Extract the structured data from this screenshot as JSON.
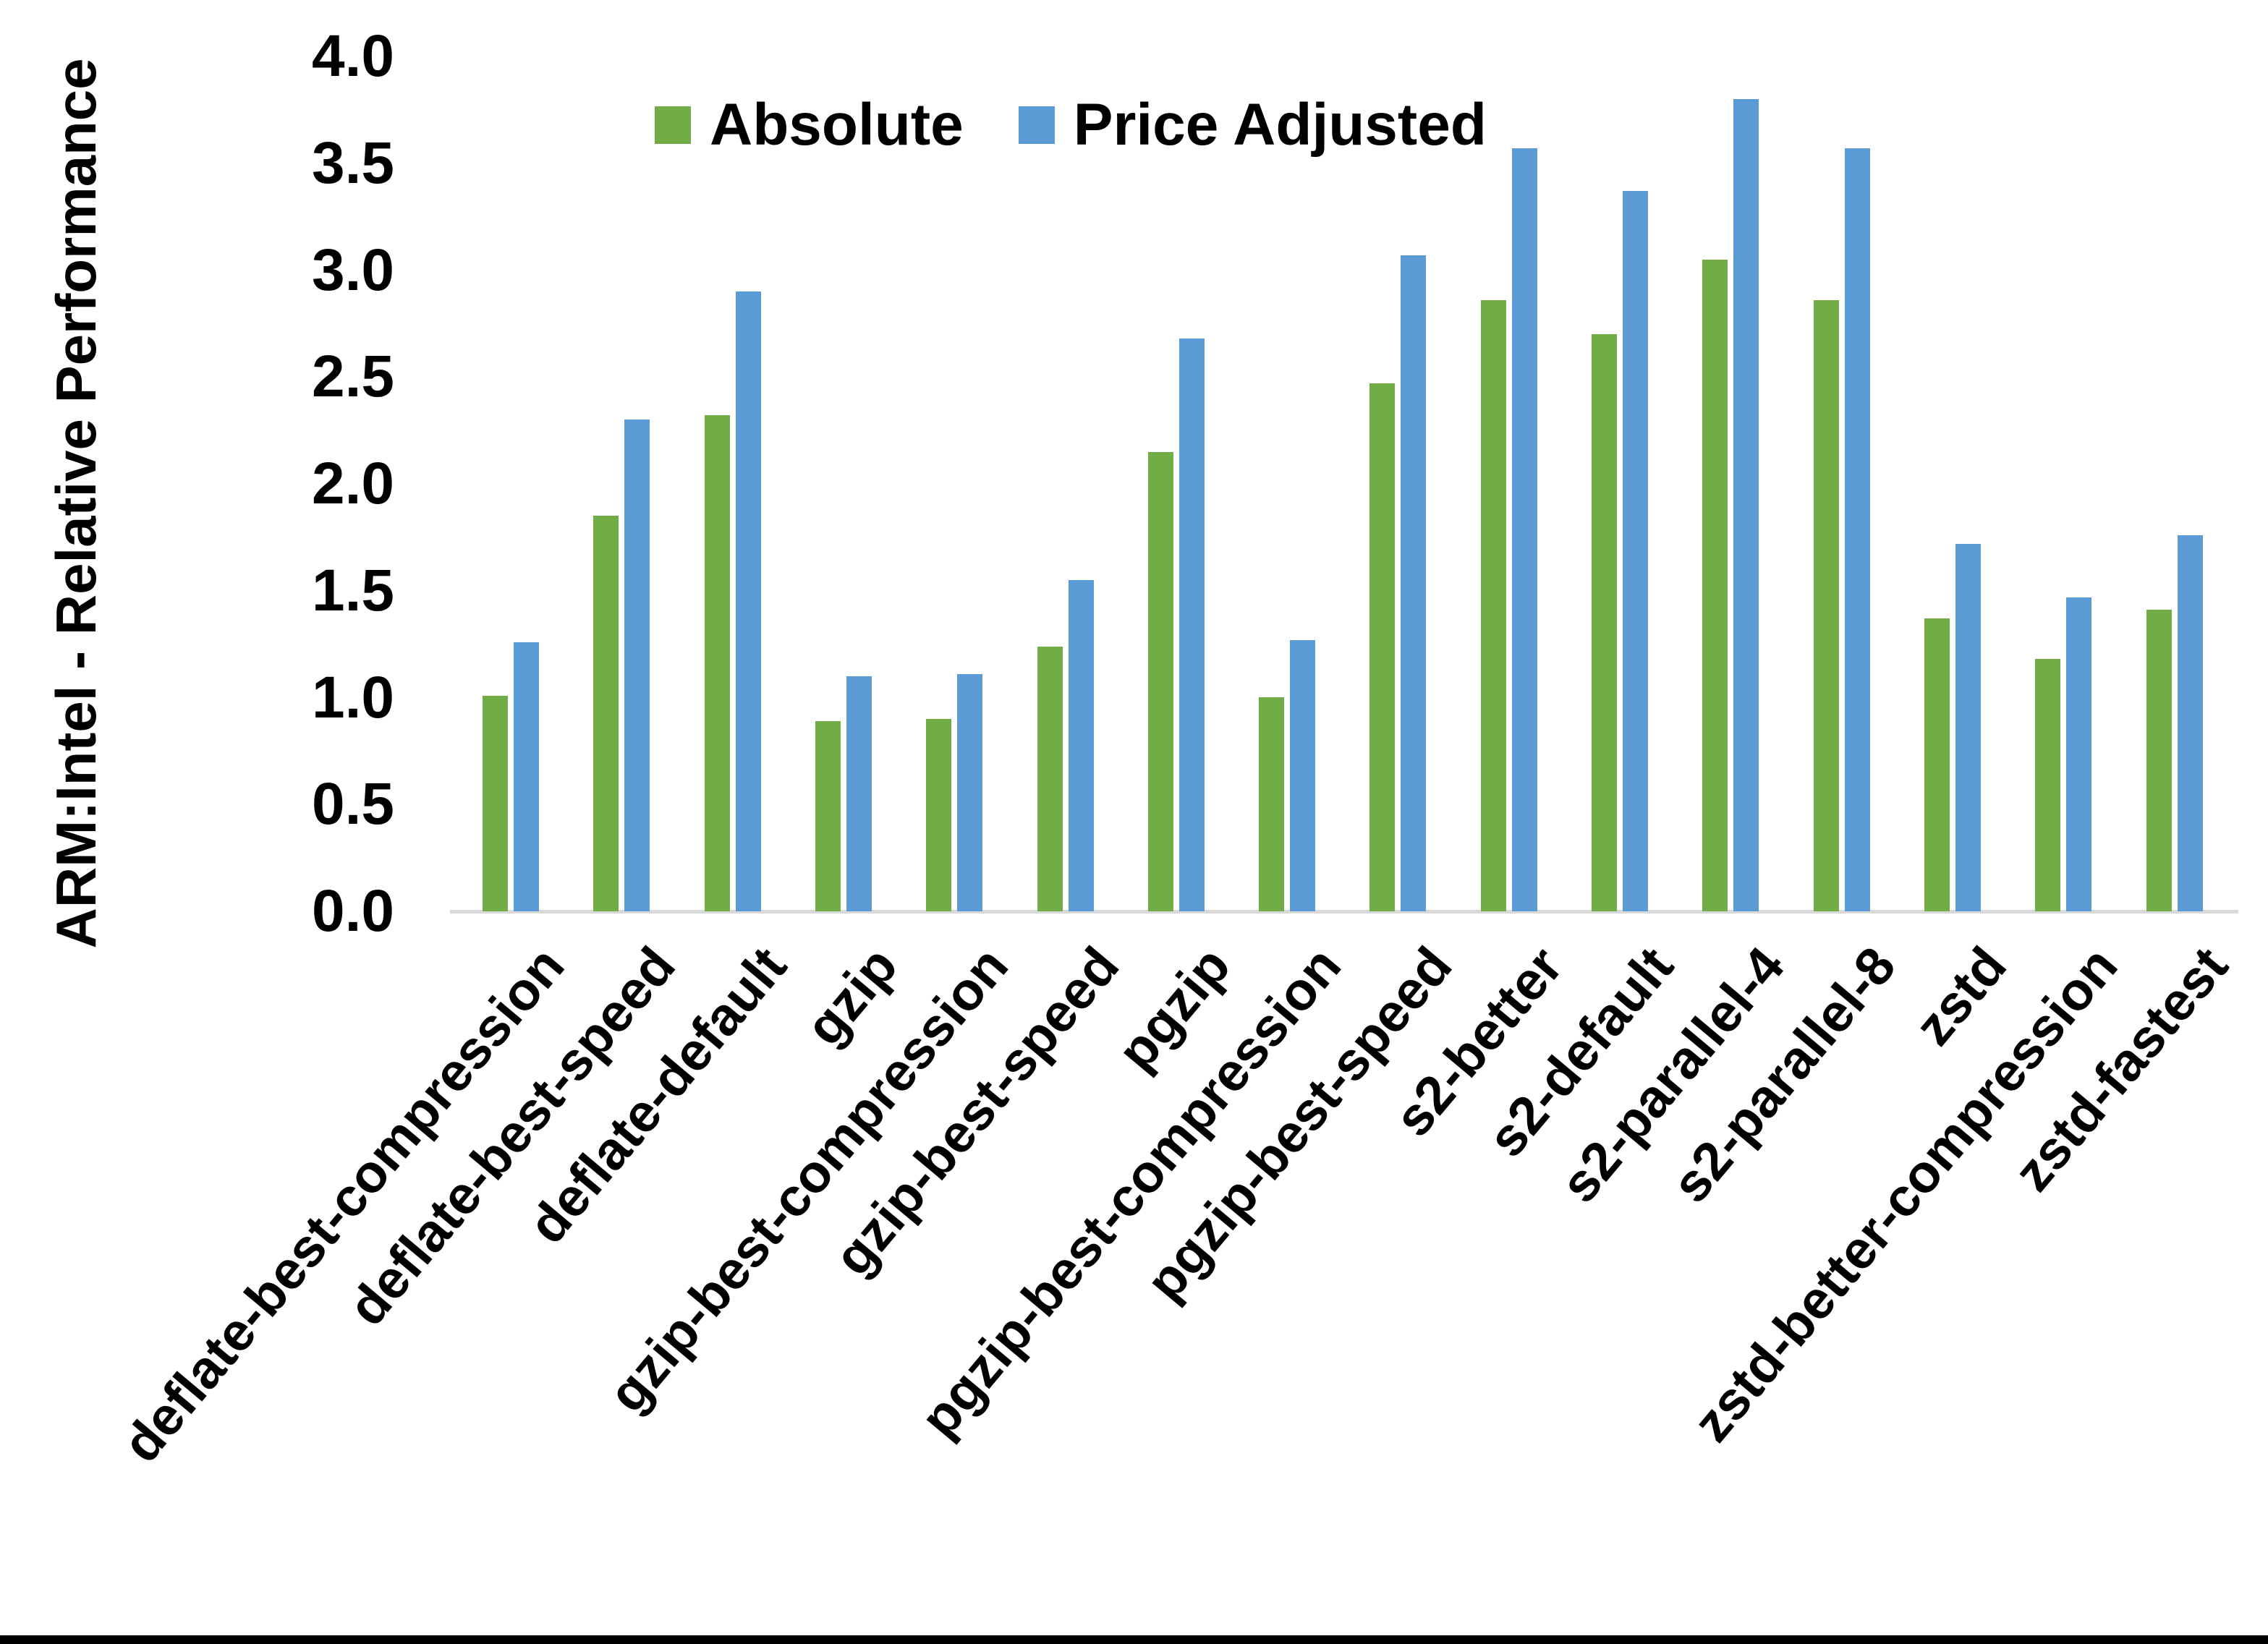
{
  "page": {
    "background": "#ffffff",
    "bottom_border_color": "#000000"
  },
  "legend": {
    "items": [
      {
        "label": "Absolute",
        "color": "#70AD47"
      },
      {
        "label": "Price Adjusted",
        "color": "#5B9BD5"
      }
    ]
  },
  "chart_data": {
    "type": "bar",
    "title": "",
    "xlabel": "",
    "ylabel": "ARM:Intel - Relative Performance",
    "ylim": [
      0.0,
      4.0
    ],
    "ytick_step": 0.5,
    "ytick_labels": [
      "0.0",
      "0.5",
      "1.0",
      "1.5",
      "2.0",
      "2.5",
      "3.0",
      "3.5",
      "4.0"
    ],
    "grid": false,
    "legend_position": "top-center",
    "categories": [
      "deflate-best-compression",
      "deflate-best-speed",
      "deflate-default",
      "gzip",
      "gzip-best-compression",
      "gzip-best-speed",
      "pgzip",
      "pgzip-best-compression",
      "pgzip-best-speed",
      "s2-better",
      "s2-default",
      "s2-parallel-4",
      "s2-parallel-8",
      "zstd",
      "zstd-better-compression",
      "zstd-fastest"
    ],
    "series": [
      {
        "name": "Absolute",
        "color": "#70AD47",
        "values": [
          1.01,
          1.85,
          2.32,
          0.89,
          0.9,
          1.24,
          2.15,
          1.0,
          2.47,
          2.86,
          2.7,
          3.05,
          2.86,
          1.37,
          1.18,
          1.41
        ]
      },
      {
        "name": "Price Adjusted",
        "color": "#5B9BD5",
        "values": [
          1.26,
          2.3,
          2.9,
          1.1,
          1.11,
          1.55,
          2.68,
          1.27,
          3.07,
          3.57,
          3.37,
          3.8,
          3.57,
          1.72,
          1.47,
          1.76
        ]
      }
    ]
  }
}
